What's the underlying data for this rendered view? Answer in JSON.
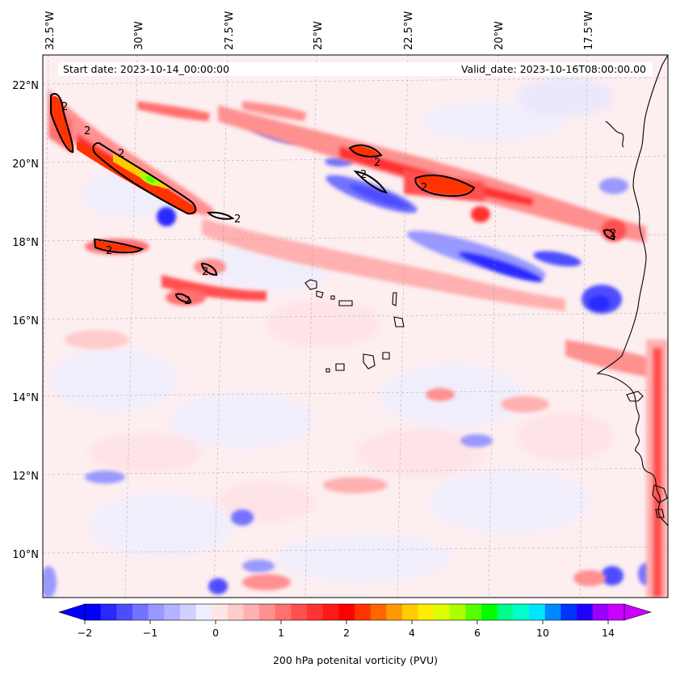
{
  "header": {
    "start_label": "Start date: 2023-10-14_00:00:00",
    "valid_label": "Valid_date: 2023-10-16T08:00:00.00"
  },
  "longitude_labels": [
    "32.5°W",
    "30°W",
    "27.5°W",
    "25°W",
    "22.5°W",
    "20°W",
    "17.5°W"
  ],
  "latitude_labels": [
    "22°N",
    "20°N",
    "18°N",
    "16°N",
    "14°N",
    "12°N",
    "10°N"
  ],
  "colorbar": {
    "title": "200 hPa potenital vorticity (PVU)",
    "tick_labels": [
      "−2",
      "−1",
      "0",
      "1",
      "2",
      "4",
      "6",
      "10",
      "14"
    ],
    "colors": [
      "#0000ff",
      "#2a2aff",
      "#4d4dff",
      "#7373ff",
      "#9999ff",
      "#b3b3ff",
      "#d0d0ff",
      "#eeeeff",
      "#ffe6e6",
      "#ffcccc",
      "#ffb0b0",
      "#ff9090",
      "#ff7070",
      "#ff5050",
      "#ff3333",
      "#ff1a1a",
      "#ff0000",
      "#ff3300",
      "#ff6600",
      "#ff9900",
      "#ffcc00",
      "#ffee00",
      "#ddff00",
      "#aaff00",
      "#55ff00",
      "#00ff00",
      "#00ff88",
      "#00ffcc",
      "#00e5ff",
      "#0088ff",
      "#0033ff",
      "#2200ff",
      "#9900ff",
      "#cc00ff"
    ]
  },
  "contour_label": "2",
  "chart_data": {
    "type": "heatmap",
    "variable": "200 hPa potenital vorticity (PVU)",
    "levels": [
      -2,
      -1,
      0,
      1,
      2,
      4,
      6,
      10,
      14
    ],
    "contour_level": 2,
    "lon_range": [
      -33,
      -16
    ],
    "lat_range": [
      9,
      22.8
    ]
  }
}
